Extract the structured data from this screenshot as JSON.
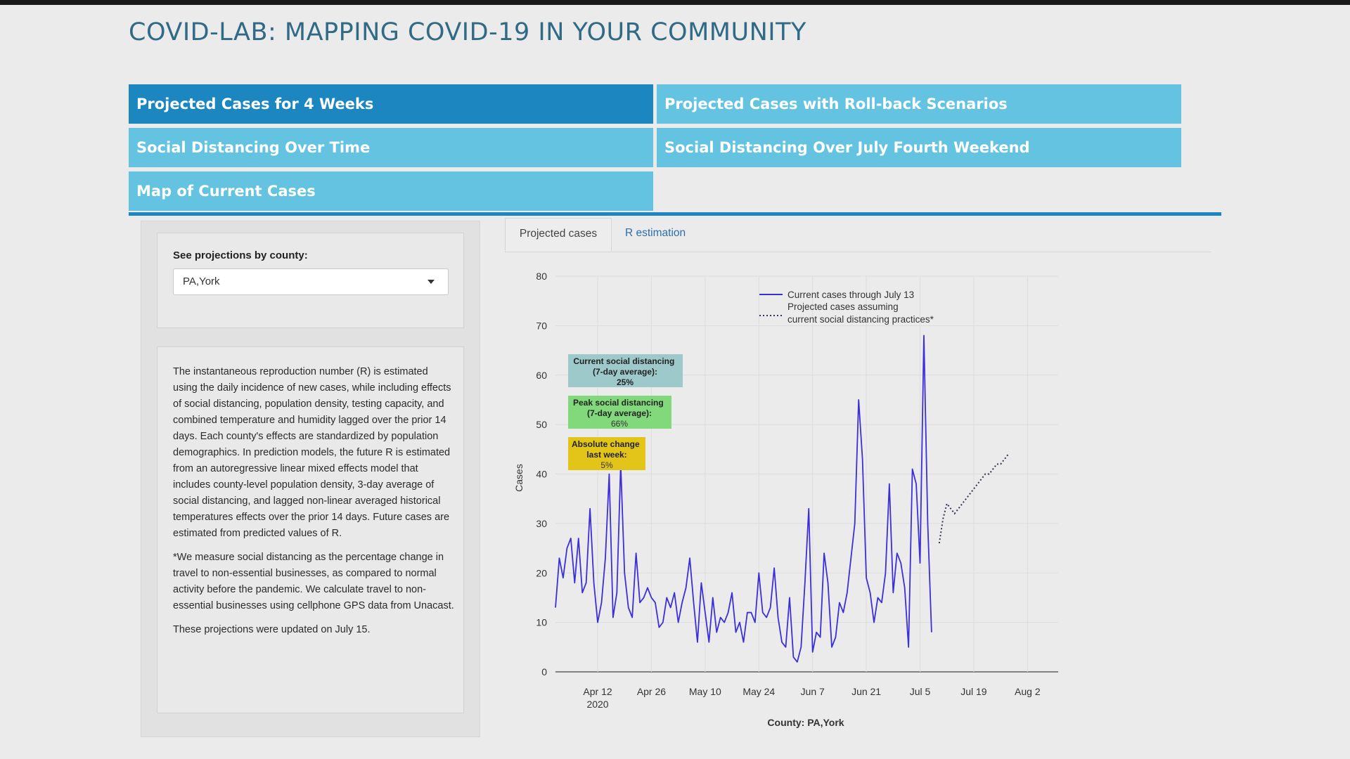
{
  "app": {
    "title": "COVID-LAB: MAPPING COVID-19 IN YOUR COMMUNITY"
  },
  "nav": {
    "tabs": [
      {
        "label": "Projected Cases for 4 Weeks",
        "active": true
      },
      {
        "label": "Projected Cases with Roll-back Scenarios",
        "active": false
      },
      {
        "label": "Social Distancing Over Time",
        "active": false
      },
      {
        "label": "Social Distancing Over July Fourth Weekend",
        "active": false
      },
      {
        "label": "Map of Current Cases",
        "active": false
      }
    ],
    "colors": {
      "active": "#1b86bf",
      "inactive": "#63c3e0"
    }
  },
  "sidebar": {
    "county_label": "See projections by county:",
    "county_value": "PA,York",
    "info_paragraphs": [
      "The instantaneous reproduction number (R) is estimated using the daily incidence of new cases, while including effects of social distancing, population density, testing capacity, and combined temperature and humidity lagged over the prior 14 days. Each county's effects are standardized by population demographics. In prediction models, the future R is estimated from an autoregressive linear mixed effects model that includes county-level population density, 3-day average of social distancing, and lagged non-linear averaged historical temperatures effects over the prior 14 days. Future cases are estimated from predicted values of R.",
      "*We measure social distancing as the percentage change in travel to non-essential businesses, as compared to normal activity before the pandemic. We calculate travel to non-essential businesses using cellphone GPS data from Unacast.",
      "These projections were updated on July 15."
    ]
  },
  "subtabs": [
    {
      "label": "Projected cases",
      "active": true
    },
    {
      "label": "R estimation",
      "active": false
    }
  ],
  "chart_data": {
    "type": "line",
    "xlabel": "County: PA,York",
    "ylabel": "Cases",
    "x_axis": {
      "type": "date",
      "start": "2020-04-01",
      "range": [
        "2020-04-01",
        "2020-08-10"
      ]
    },
    "ylim": [
      0,
      80
    ],
    "yticks": [
      0,
      10,
      20,
      30,
      40,
      50,
      60,
      70,
      80
    ],
    "xticks": [
      {
        "date": "2020-04-12",
        "label": "Apr 12",
        "sublabel": "2020"
      },
      {
        "date": "2020-04-26",
        "label": "Apr 26"
      },
      {
        "date": "2020-05-10",
        "label": "May 10"
      },
      {
        "date": "2020-05-24",
        "label": "May 24"
      },
      {
        "date": "2020-06-07",
        "label": "Jun 7"
      },
      {
        "date": "2020-06-21",
        "label": "Jun 21"
      },
      {
        "date": "2020-07-05",
        "label": "Jul 5"
      },
      {
        "date": "2020-07-19",
        "label": "Jul 19"
      },
      {
        "date": "2020-08-02",
        "label": "Aug 2"
      }
    ],
    "grid": true,
    "legend_position": "top-right",
    "series": [
      {
        "name": "Current cases through July 13",
        "style": "solid",
        "color": "#3b2fd9",
        "values": [
          13,
          23,
          19,
          25,
          27,
          18,
          27,
          16,
          18,
          33,
          18,
          10,
          14,
          23,
          40,
          11,
          16,
          42,
          20,
          13,
          11,
          24,
          14,
          15,
          17,
          15,
          14,
          9,
          10,
          15,
          13,
          16,
          10,
          14,
          17,
          23,
          14,
          6,
          18,
          12,
          6,
          15,
          8,
          11,
          10,
          12,
          16,
          8,
          10,
          6,
          12,
          12,
          10,
          20,
          12,
          11,
          13,
          21,
          11,
          6,
          5,
          15,
          3,
          2,
          5,
          18,
          33,
          4,
          8,
          7,
          24,
          18,
          5,
          7,
          14,
          12,
          16,
          23,
          30,
          55,
          43,
          19,
          16,
          10,
          15,
          14,
          20,
          38,
          16,
          24,
          22,
          17,
          5,
          41,
          38,
          22,
          68,
          30,
          8
        ]
      },
      {
        "name": "Projected cases assuming current social distancing practices*",
        "style": "dotted",
        "color": "#333355",
        "values": [
          26,
          31,
          34,
          33,
          32,
          33,
          34,
          35,
          36,
          37,
          38,
          39,
          40,
          40,
          41,
          42,
          42,
          43,
          44
        ]
      }
    ],
    "annotations": [
      {
        "title": "Current social distancing (7-day average):",
        "value": "25%",
        "color": "#9dc9cb"
      },
      {
        "title": "Peak social distancing (7-day average):",
        "value": "66%",
        "color": "#82d97c"
      },
      {
        "title": "Absolute change last week:",
        "value": "5%",
        "color": "#e3c51a"
      }
    ]
  }
}
